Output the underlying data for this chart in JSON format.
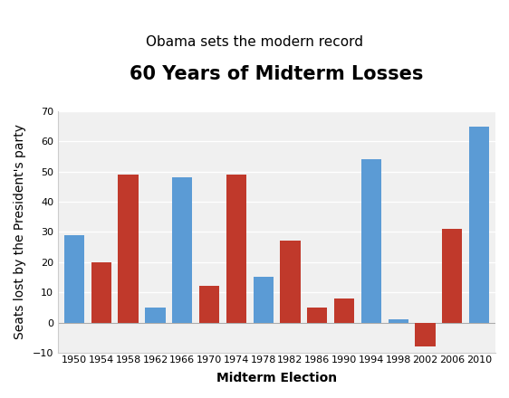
{
  "years": [
    1950,
    1954,
    1958,
    1962,
    1966,
    1970,
    1974,
    1978,
    1982,
    1986,
    1990,
    1994,
    1998,
    2002,
    2006,
    2010
  ],
  "values": [
    29,
    20,
    49,
    5,
    48,
    12,
    49,
    15,
    27,
    5,
    8,
    54,
    1,
    -8,
    31,
    65
  ],
  "colors": [
    "#5b9bd5",
    "#c0392b",
    "#c0392b",
    "#5b9bd5",
    "#5b9bd5",
    "#c0392b",
    "#c0392b",
    "#5b9bd5",
    "#c0392b",
    "#c0392b",
    "#c0392b",
    "#5b9bd5",
    "#5b9bd5",
    "#c0392b",
    "#c0392b",
    "#5b9bd5"
  ],
  "title": "60 Years of Midterm Losses",
  "subtitle": "Obama sets the modern record",
  "xlabel": "Midterm Election",
  "ylabel": "Seats lost by the President's party",
  "ylim": [
    -10,
    70
  ],
  "yticks": [
    -10,
    0,
    10,
    20,
    30,
    40,
    50,
    60,
    70
  ],
  "figure_bg": "#ffffff",
  "plot_bg": "#f0f0f0",
  "grid_color": "#ffffff",
  "bar_width": 0.75,
  "title_fontsize": 15,
  "subtitle_fontsize": 11,
  "axis_label_fontsize": 10,
  "tick_fontsize": 8
}
